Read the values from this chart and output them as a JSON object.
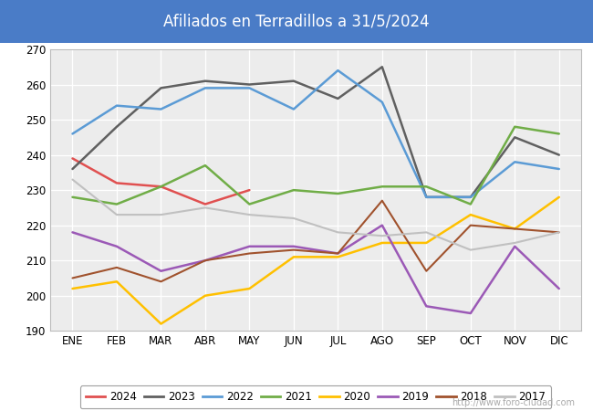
{
  "title": "Afiliados en Terradillos a 31/5/2024",
  "title_bg_color": "#4a7cc7",
  "title_text_color": "white",
  "months": [
    "ENE",
    "FEB",
    "MAR",
    "ABR",
    "MAY",
    "JUN",
    "JUL",
    "AGO",
    "SEP",
    "OCT",
    "NOV",
    "DIC"
  ],
  "ylim": [
    190,
    270
  ],
  "yticks": [
    190,
    200,
    210,
    220,
    230,
    240,
    250,
    260,
    270
  ],
  "watermark": "http://www.foro-ciudad.com",
  "series": [
    {
      "year": "2024",
      "color": "#e05050",
      "linewidth": 1.8,
      "data": [
        239,
        232,
        231,
        226,
        230,
        null,
        null,
        null,
        null,
        null,
        null,
        null
      ]
    },
    {
      "year": "2023",
      "color": "#606060",
      "linewidth": 1.8,
      "data": [
        236,
        248,
        259,
        261,
        260,
        261,
        256,
        265,
        228,
        228,
        245,
        240
      ]
    },
    {
      "year": "2022",
      "color": "#5b9bd5",
      "linewidth": 1.8,
      "data": [
        246,
        254,
        253,
        259,
        259,
        253,
        264,
        255,
        228,
        228,
        238,
        236
      ]
    },
    {
      "year": "2021",
      "color": "#70ad47",
      "linewidth": 1.8,
      "data": [
        228,
        226,
        231,
        237,
        226,
        230,
        229,
        231,
        231,
        226,
        248,
        246
      ]
    },
    {
      "year": "2020",
      "color": "#ffc000",
      "linewidth": 1.8,
      "data": [
        202,
        204,
        192,
        200,
        202,
        211,
        211,
        215,
        215,
        223,
        219,
        228
      ]
    },
    {
      "year": "2019",
      "color": "#9b59b6",
      "linewidth": 1.8,
      "data": [
        218,
        214,
        207,
        210,
        214,
        214,
        212,
        220,
        197,
        195,
        214,
        202
      ]
    },
    {
      "year": "2018",
      "color": "#a0522d",
      "linewidth": 1.5,
      "data": [
        205,
        208,
        204,
        210,
        212,
        213,
        212,
        227,
        207,
        220,
        219,
        218
      ]
    },
    {
      "year": "2017",
      "color": "#c0c0c0",
      "linewidth": 1.5,
      "data": [
        233,
        223,
        223,
        225,
        223,
        222,
        218,
        217,
        218,
        213,
        215,
        218
      ]
    }
  ]
}
